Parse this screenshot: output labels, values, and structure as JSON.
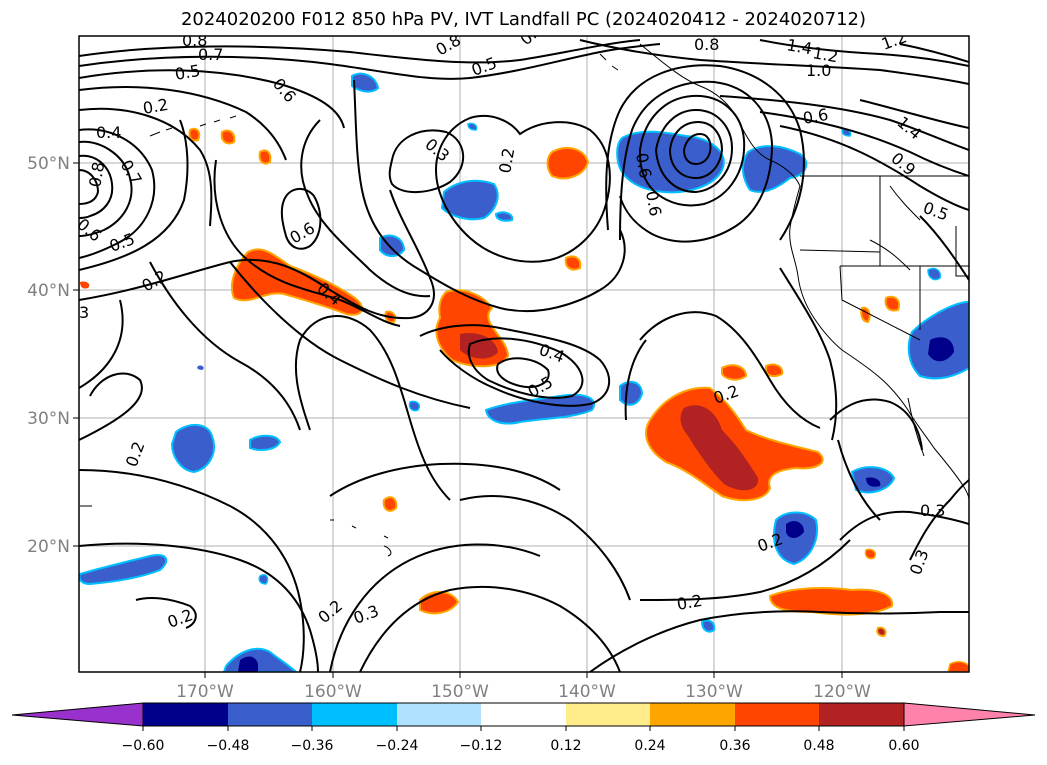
{
  "title": "2024020200 F012 850 hPa PV, IVT Landfall PC (2024020412 - 2024020712)",
  "map": {
    "lon_ticks": [
      "170°W",
      "160°W",
      "150°W",
      "140°W",
      "130°W",
      "120°W"
    ],
    "lat_ticks": [
      "20°N",
      "30°N",
      "40°N",
      "50°N"
    ],
    "grid": true,
    "tick_label_color": "#808080"
  },
  "contour_labels": [
    "0.8",
    "0.7",
    "0.5",
    "0.6",
    "0.8",
    "0.5",
    "0.6",
    "0.8",
    "1.4",
    "1.2",
    "1.0",
    "1.2",
    "0.2",
    "0.4",
    "0.7",
    "0.8",
    "0.6",
    "0.5",
    "0.3",
    "0.2",
    "0.6",
    "0.6",
    "0.6",
    "0.6",
    "1.4",
    "0.9",
    "0.5",
    "0.2",
    "0.4",
    "3",
    "0.4",
    "0.5",
    "0.2",
    "0.2",
    "0.3",
    "0.2",
    "0.3",
    "0.2",
    "0.2",
    "0.3",
    "0.2"
  ],
  "colorbar": {
    "ticks": [
      "−0.60",
      "−0.48",
      "−0.36",
      "−0.24",
      "−0.12",
      "0.12",
      "0.24",
      "0.36",
      "0.48",
      "0.60"
    ],
    "colors": [
      "#9932cc",
      "#00008b",
      "#3a5fcd",
      "#00bfff",
      "#b0e2ff",
      "#ffffff",
      "#ffec8b",
      "#ffa500",
      "#ff4500",
      "#b22222",
      "#ff82ab"
    ],
    "extend": "both"
  }
}
